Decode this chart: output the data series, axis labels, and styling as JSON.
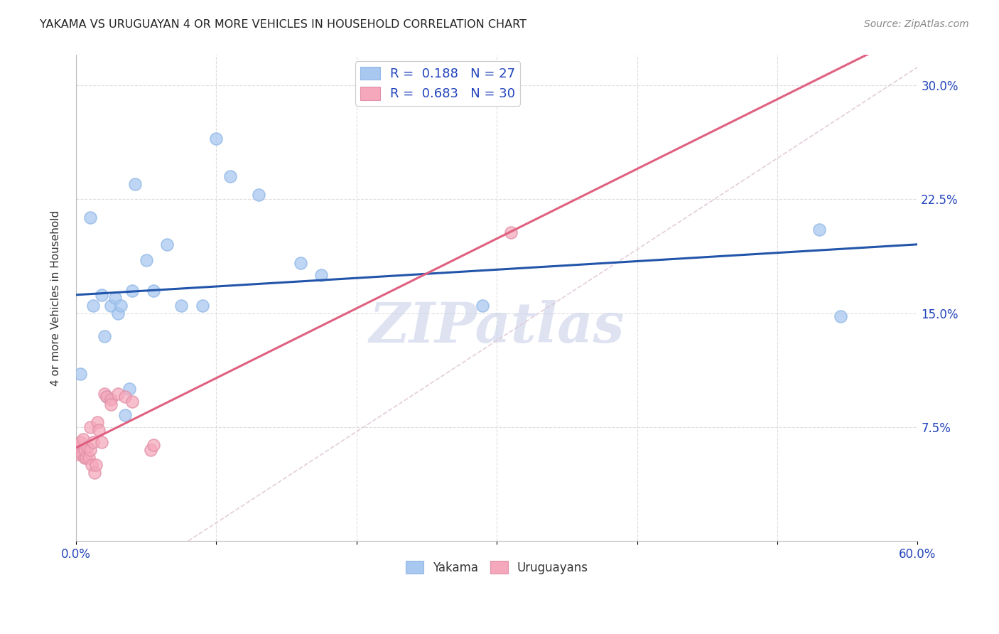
{
  "title": "YAKAMA VS URUGUAYAN 4 OR MORE VEHICLES IN HOUSEHOLD CORRELATION CHART",
  "source": "Source: ZipAtlas.com",
  "ylabel": "4 or more Vehicles in Household",
  "xlim": [
    0.0,
    0.6
  ],
  "ylim": [
    0.0,
    0.32
  ],
  "xticks": [
    0.0,
    0.1,
    0.2,
    0.3,
    0.4,
    0.5,
    0.6
  ],
  "xtick_labels_visible": {
    "0.0": "0.0%",
    "0.6": "60.0%"
  },
  "yticks": [
    0.075,
    0.15,
    0.225,
    0.3
  ],
  "ytick_labels": [
    "7.5%",
    "15.0%",
    "22.5%",
    "30.0%"
  ],
  "legend_labels": [
    "Yakama",
    "Uruguayans"
  ],
  "R_yakama": 0.188,
  "N_yakama": 27,
  "R_uruguayan": 0.683,
  "N_uruguayan": 30,
  "blue_scatter_color": "#A8C8F0",
  "pink_scatter_color": "#F5A8BB",
  "blue_line_color": "#2255AA",
  "pink_line_color": "#E06080",
  "diagonal_color": "#E0C8D8",
  "grid_color": "#DDDDDD",
  "title_color": "#222222",
  "legend_text_color": "#2244BB",
  "watermark_color": "#C8D0E8",
  "background_color": "#FFFFFF",
  "yakama_x": [
    0.003,
    0.01,
    0.012,
    0.018,
    0.02,
    0.022,
    0.025,
    0.028,
    0.03,
    0.032,
    0.035,
    0.038,
    0.04,
    0.042,
    0.05,
    0.055,
    0.065,
    0.075,
    0.09,
    0.1,
    0.11,
    0.13,
    0.16,
    0.175,
    0.29,
    0.53,
    0.545
  ],
  "yakama_y": [
    0.11,
    0.213,
    0.155,
    0.162,
    0.135,
    0.095,
    0.155,
    0.16,
    0.15,
    0.155,
    0.083,
    0.1,
    0.165,
    0.235,
    0.185,
    0.165,
    0.195,
    0.155,
    0.155,
    0.265,
    0.24,
    0.228,
    0.183,
    0.175,
    0.155,
    0.205,
    0.148
  ],
  "uruguayan_x": [
    0.0,
    0.001,
    0.002,
    0.003,
    0.004,
    0.005,
    0.006,
    0.006,
    0.007,
    0.008,
    0.009,
    0.01,
    0.01,
    0.011,
    0.012,
    0.013,
    0.014,
    0.015,
    0.016,
    0.018,
    0.02,
    0.022,
    0.025,
    0.025,
    0.03,
    0.035,
    0.04,
    0.053,
    0.055,
    0.31
  ],
  "uruguayan_y": [
    0.063,
    0.057,
    0.06,
    0.065,
    0.057,
    0.067,
    0.055,
    0.06,
    0.055,
    0.062,
    0.055,
    0.075,
    0.06,
    0.05,
    0.065,
    0.045,
    0.05,
    0.078,
    0.073,
    0.065,
    0.097,
    0.095,
    0.093,
    0.09,
    0.097,
    0.095,
    0.092,
    0.06,
    0.063,
    0.203
  ]
}
